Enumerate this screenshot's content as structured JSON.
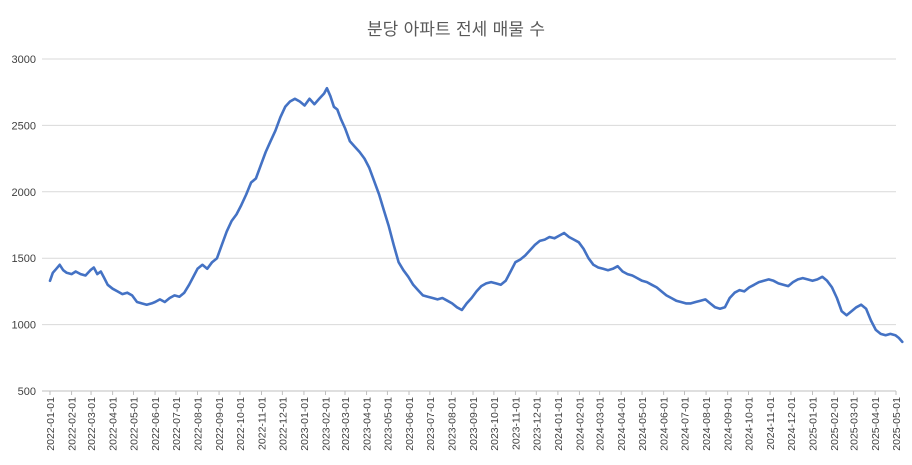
{
  "chart_data": {
    "type": "line",
    "title": "분당 아파트 전세 매물 수",
    "xlabel": "",
    "ylabel": "",
    "ylim": [
      500,
      3000
    ],
    "yticks": [
      "500",
      "1000",
      "1500",
      "2000",
      "2500",
      "3000"
    ],
    "grid": true,
    "legend": "none",
    "series_color": "#4472c4",
    "x_tick_labels": [
      "2022-01-01",
      "2022-02-01",
      "2022-03-01",
      "2022-04-01",
      "2022-05-01",
      "2022-06-01",
      "2022-07-01",
      "2022-08-01",
      "2022-09-01",
      "2022-10-01",
      "2022-11-01",
      "2022-12-01",
      "2023-01-01",
      "2023-02-01",
      "2023-03-01",
      "2023-04-01",
      "2023-05-01",
      "2023-06-01",
      "2023-07-01",
      "2023-08-01",
      "2023-09-01",
      "2023-10-01",
      "2023-11-01",
      "2023-12-01",
      "2024-01-01",
      "2024-02-01",
      "2024-03-01",
      "2024-04-01",
      "2024-05-01",
      "2024-06-01",
      "2024-07-01",
      "2024-08-01",
      "2024-09-01",
      "2024-10-01",
      "2024-11-01",
      "2024-12-01",
      "2025-01-01",
      "2025-02-01",
      "2025-03-01",
      "2025-04-01",
      "2025-05-01"
    ],
    "series": [
      {
        "values": [
          [
            "2022-01-01",
            1330
          ],
          [
            "2022-01-05",
            1390
          ],
          [
            "2022-01-10",
            1420
          ],
          [
            "2022-01-15",
            1450
          ],
          [
            "2022-01-20",
            1410
          ],
          [
            "2022-01-25",
            1390
          ],
          [
            "2022-02-01",
            1380
          ],
          [
            "2022-02-07",
            1400
          ],
          [
            "2022-02-14",
            1380
          ],
          [
            "2022-02-21",
            1370
          ],
          [
            "2022-02-28",
            1410
          ],
          [
            "2022-03-05",
            1430
          ],
          [
            "2022-03-10",
            1380
          ],
          [
            "2022-03-15",
            1400
          ],
          [
            "2022-03-20",
            1350
          ],
          [
            "2022-03-25",
            1300
          ],
          [
            "2022-04-01",
            1270
          ],
          [
            "2022-04-08",
            1250
          ],
          [
            "2022-04-15",
            1230
          ],
          [
            "2022-04-22",
            1240
          ],
          [
            "2022-04-29",
            1220
          ],
          [
            "2022-05-06",
            1170
          ],
          [
            "2022-05-13",
            1160
          ],
          [
            "2022-05-20",
            1150
          ],
          [
            "2022-05-27",
            1160
          ],
          [
            "2022-06-01",
            1170
          ],
          [
            "2022-06-08",
            1190
          ],
          [
            "2022-06-15",
            1170
          ],
          [
            "2022-06-22",
            1200
          ],
          [
            "2022-06-29",
            1220
          ],
          [
            "2022-07-06",
            1210
          ],
          [
            "2022-07-13",
            1240
          ],
          [
            "2022-07-20",
            1300
          ],
          [
            "2022-07-27",
            1370
          ],
          [
            "2022-08-01",
            1420
          ],
          [
            "2022-08-08",
            1450
          ],
          [
            "2022-08-15",
            1420
          ],
          [
            "2022-08-22",
            1470
          ],
          [
            "2022-08-29",
            1500
          ],
          [
            "2022-09-05",
            1600
          ],
          [
            "2022-09-12",
            1700
          ],
          [
            "2022-09-19",
            1780
          ],
          [
            "2022-09-26",
            1830
          ],
          [
            "2022-10-03",
            1900
          ],
          [
            "2022-10-10",
            1980
          ],
          [
            "2022-10-17",
            2070
          ],
          [
            "2022-10-24",
            2100
          ],
          [
            "2022-10-31",
            2200
          ],
          [
            "2022-11-07",
            2300
          ],
          [
            "2022-11-14",
            2380
          ],
          [
            "2022-11-21",
            2460
          ],
          [
            "2022-11-28",
            2560
          ],
          [
            "2022-12-05",
            2640
          ],
          [
            "2022-12-12",
            2680
          ],
          [
            "2022-12-19",
            2700
          ],
          [
            "2022-12-26",
            2680
          ],
          [
            "2023-01-02",
            2650
          ],
          [
            "2023-01-09",
            2700
          ],
          [
            "2023-01-16",
            2660
          ],
          [
            "2023-01-23",
            2700
          ],
          [
            "2023-01-30",
            2740
          ],
          [
            "2023-02-03",
            2780
          ],
          [
            "2023-02-08",
            2720
          ],
          [
            "2023-02-13",
            2640
          ],
          [
            "2023-02-18",
            2620
          ],
          [
            "2023-02-23",
            2550
          ],
          [
            "2023-03-01",
            2480
          ],
          [
            "2023-03-08",
            2380
          ],
          [
            "2023-03-15",
            2340
          ],
          [
            "2023-03-22",
            2300
          ],
          [
            "2023-03-29",
            2250
          ],
          [
            "2023-04-05",
            2180
          ],
          [
            "2023-04-12",
            2080
          ],
          [
            "2023-04-19",
            1980
          ],
          [
            "2023-04-26",
            1860
          ],
          [
            "2023-05-03",
            1740
          ],
          [
            "2023-05-10",
            1600
          ],
          [
            "2023-05-17",
            1470
          ],
          [
            "2023-05-24",
            1410
          ],
          [
            "2023-05-31",
            1360
          ],
          [
            "2023-06-07",
            1300
          ],
          [
            "2023-06-14",
            1260
          ],
          [
            "2023-06-21",
            1220
          ],
          [
            "2023-06-28",
            1210
          ],
          [
            "2023-07-05",
            1200
          ],
          [
            "2023-07-12",
            1190
          ],
          [
            "2023-07-19",
            1200
          ],
          [
            "2023-07-26",
            1180
          ],
          [
            "2023-08-02",
            1160
          ],
          [
            "2023-08-09",
            1130
          ],
          [
            "2023-08-16",
            1110
          ],
          [
            "2023-08-23",
            1160
          ],
          [
            "2023-08-30",
            1200
          ],
          [
            "2023-09-06",
            1250
          ],
          [
            "2023-09-13",
            1290
          ],
          [
            "2023-09-20",
            1310
          ],
          [
            "2023-09-27",
            1320
          ],
          [
            "2023-10-04",
            1310
          ],
          [
            "2023-10-11",
            1300
          ],
          [
            "2023-10-18",
            1330
          ],
          [
            "2023-10-25",
            1400
          ],
          [
            "2023-11-01",
            1470
          ],
          [
            "2023-11-08",
            1490
          ],
          [
            "2023-11-15",
            1520
          ],
          [
            "2023-11-22",
            1560
          ],
          [
            "2023-11-29",
            1600
          ],
          [
            "2023-12-06",
            1630
          ],
          [
            "2023-12-13",
            1640
          ],
          [
            "2023-12-20",
            1660
          ],
          [
            "2023-12-27",
            1650
          ],
          [
            "2024-01-03",
            1670
          ],
          [
            "2024-01-10",
            1690
          ],
          [
            "2024-01-17",
            1660
          ],
          [
            "2024-01-24",
            1640
          ],
          [
            "2024-01-31",
            1620
          ],
          [
            "2024-02-07",
            1570
          ],
          [
            "2024-02-14",
            1500
          ],
          [
            "2024-02-21",
            1450
          ],
          [
            "2024-02-28",
            1430
          ],
          [
            "2024-03-06",
            1420
          ],
          [
            "2024-03-13",
            1410
          ],
          [
            "2024-03-20",
            1420
          ],
          [
            "2024-03-27",
            1440
          ],
          [
            "2024-04-03",
            1400
          ],
          [
            "2024-04-10",
            1380
          ],
          [
            "2024-04-17",
            1370
          ],
          [
            "2024-04-24",
            1350
          ],
          [
            "2024-05-01",
            1330
          ],
          [
            "2024-05-08",
            1320
          ],
          [
            "2024-05-15",
            1300
          ],
          [
            "2024-05-22",
            1280
          ],
          [
            "2024-05-29",
            1250
          ],
          [
            "2024-06-05",
            1220
          ],
          [
            "2024-06-12",
            1200
          ],
          [
            "2024-06-19",
            1180
          ],
          [
            "2024-06-26",
            1170
          ],
          [
            "2024-07-03",
            1160
          ],
          [
            "2024-07-10",
            1160
          ],
          [
            "2024-07-17",
            1170
          ],
          [
            "2024-07-24",
            1180
          ],
          [
            "2024-07-31",
            1190
          ],
          [
            "2024-08-07",
            1160
          ],
          [
            "2024-08-14",
            1130
          ],
          [
            "2024-08-21",
            1120
          ],
          [
            "2024-08-28",
            1130
          ],
          [
            "2024-09-04",
            1200
          ],
          [
            "2024-09-11",
            1240
          ],
          [
            "2024-09-18",
            1260
          ],
          [
            "2024-09-25",
            1250
          ],
          [
            "2024-10-02",
            1280
          ],
          [
            "2024-10-09",
            1300
          ],
          [
            "2024-10-16",
            1320
          ],
          [
            "2024-10-23",
            1330
          ],
          [
            "2024-10-30",
            1340
          ],
          [
            "2024-11-06",
            1330
          ],
          [
            "2024-11-13",
            1310
          ],
          [
            "2024-11-20",
            1300
          ],
          [
            "2024-11-27",
            1290
          ],
          [
            "2024-12-04",
            1320
          ],
          [
            "2024-12-11",
            1340
          ],
          [
            "2024-12-18",
            1350
          ],
          [
            "2024-12-25",
            1340
          ],
          [
            "2025-01-01",
            1330
          ],
          [
            "2025-01-08",
            1340
          ],
          [
            "2025-01-15",
            1360
          ],
          [
            "2025-01-22",
            1330
          ],
          [
            "2025-01-29",
            1280
          ],
          [
            "2025-02-05",
            1200
          ],
          [
            "2025-02-12",
            1100
          ],
          [
            "2025-02-19",
            1070
          ],
          [
            "2025-02-26",
            1100
          ],
          [
            "2025-03-05",
            1130
          ],
          [
            "2025-03-12",
            1150
          ],
          [
            "2025-03-19",
            1120
          ],
          [
            "2025-03-26",
            1030
          ],
          [
            "2025-04-02",
            960
          ],
          [
            "2025-04-09",
            930
          ],
          [
            "2025-04-16",
            920
          ],
          [
            "2025-04-23",
            930
          ],
          [
            "2025-04-30",
            920
          ],
          [
            "2025-05-05",
            900
          ],
          [
            "2025-05-10",
            870
          ]
        ]
      }
    ]
  }
}
